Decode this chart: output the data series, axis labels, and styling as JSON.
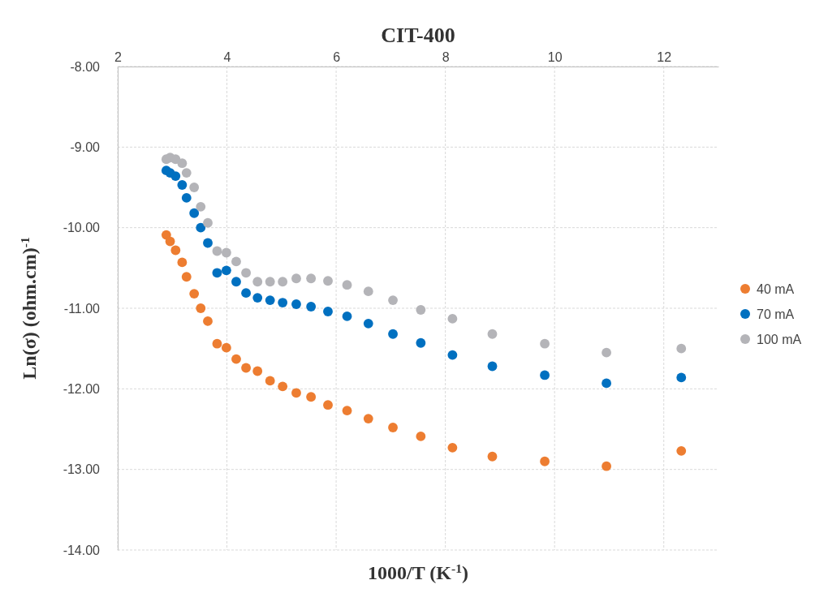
{
  "chart_data": {
    "type": "scatter",
    "title": "CIT-400",
    "xlabel": "1000/T (K$^{-1}$)",
    "ylabel": "Ln(σ) (ohm.cm)$^{-1}$",
    "x": [
      2.89,
      2.96,
      3.06,
      3.18,
      3.26,
      3.4,
      3.52,
      3.65,
      3.82,
      3.99,
      4.17,
      4.35,
      4.56,
      4.79,
      5.02,
      5.27,
      5.54,
      5.85,
      6.2,
      6.59,
      7.04,
      7.55,
      8.13,
      8.86,
      9.82,
      10.95,
      12.32
    ],
    "series": [
      {
        "name": "40 mA",
        "color": "#ed7d31",
        "values": [
          -10.09,
          -10.17,
          -10.28,
          -10.43,
          -10.61,
          -10.82,
          -11.0,
          -11.16,
          -11.44,
          -11.49,
          -11.63,
          -11.74,
          -11.78,
          -11.9,
          -11.97,
          -12.05,
          -12.1,
          -12.2,
          -12.27,
          -12.37,
          -12.48,
          -12.59,
          -12.73,
          -12.84,
          -12.9,
          -12.96,
          -12.77
        ]
      },
      {
        "name": "70 mA",
        "color": "#0070c0",
        "values": [
          -9.29,
          -9.32,
          -9.36,
          -9.47,
          -9.63,
          -9.82,
          -10.0,
          -10.19,
          -10.56,
          -10.53,
          -10.67,
          -10.81,
          -10.87,
          -10.9,
          -10.93,
          -10.95,
          -10.98,
          -11.04,
          -11.1,
          -11.19,
          -11.32,
          -11.43,
          -11.58,
          -11.72,
          -11.83,
          -11.93,
          -11.86
        ]
      },
      {
        "name": "100 mA",
        "color": "#b4b4b8",
        "values": [
          -9.15,
          -9.13,
          -9.15,
          -9.2,
          -9.32,
          -9.5,
          -9.74,
          -9.94,
          -10.29,
          -10.31,
          -10.42,
          -10.56,
          -10.67,
          -10.67,
          -10.67,
          -10.63,
          -10.63,
          -10.66,
          -10.71,
          -10.79,
          -10.9,
          -11.02,
          -11.13,
          -11.32,
          -11.44,
          -11.55,
          -11.5
        ]
      }
    ],
    "xlim": [
      2,
      13
    ],
    "xticks": [
      2,
      4,
      6,
      8,
      10,
      12
    ],
    "ylim": [
      -14,
      -8
    ],
    "yticks": [
      {
        "value": -14,
        "label": "-14.00"
      },
      {
        "value": -13,
        "label": "-13.00"
      },
      {
        "value": -12,
        "label": "-12.00"
      },
      {
        "value": -11,
        "label": "-11.00"
      },
      {
        "value": -10,
        "label": "-10.00"
      },
      {
        "value": -9,
        "label": "-9.00"
      },
      {
        "value": -8,
        "label": "-8.00"
      }
    ],
    "grid": true,
    "legend": "right",
    "marker": "circle"
  }
}
